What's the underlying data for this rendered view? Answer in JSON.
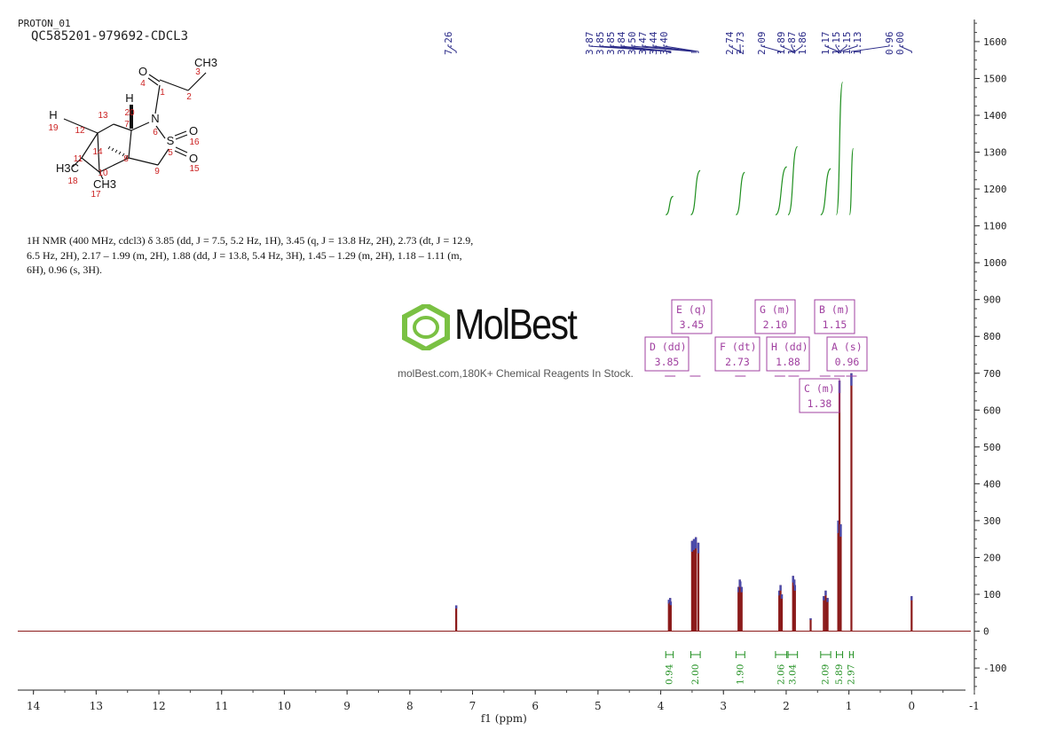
{
  "header": {
    "pulse": "PROTON_01",
    "sample": "QC585201-979692-CDCL3"
  },
  "description_text": {
    "line1": "1H NMR (400 MHz, cdcl3) δ 3.85 (dd, J = 7.5, 5.2 Hz, 1H), 3.45 (q, J = 13.8 Hz, 2H), 2.73 (dt, J = 12.9,",
    "line2": "6.5 Hz, 2H), 2.17 – 1.99 (m, 2H), 1.88 (dd, J = 13.8, 5.4 Hz, 3H), 1.45 – 1.29 (m, 2H), 1.18 – 1.11 (m,",
    "line3": "6H), 0.96 (s, 3H)."
  },
  "watermark": {
    "brand": "MolBest",
    "tagline": "molBest.com,180K+ Chemical Reagents In Stock."
  },
  "structure": {
    "atoms": [
      "O",
      "N",
      "S",
      "O",
      "O",
      "H",
      "H",
      "CH3",
      "H3C",
      "CH3"
    ],
    "numbers": [
      "1",
      "2",
      "3",
      "4",
      "6",
      "7",
      "8",
      "9",
      "10",
      "11",
      "12",
      "13",
      "14",
      "15",
      "16",
      "17",
      "18",
      "19",
      "20",
      "5"
    ]
  },
  "chart_data": {
    "type": "line",
    "title": "",
    "xlabel": "f1 (ppm)",
    "ylabel": "",
    "xlim": [
      14.25,
      -1.0
    ],
    "ylim": [
      -160,
      1660
    ],
    "x_ticks": [
      "14",
      "13",
      "12",
      "11",
      "10",
      "9",
      "8",
      "7",
      "6",
      "5",
      "4",
      "3",
      "2",
      "1",
      "0",
      "-1"
    ],
    "y_ticks": [
      "1600",
      "1500",
      "1400",
      "1300",
      "1200",
      "1100",
      "1000",
      "900",
      "800",
      "700",
      "600",
      "500",
      "400",
      "300",
      "200",
      "100",
      "0",
      "-100"
    ],
    "peak_labels": [
      "7.26",
      "3.87",
      "3.85",
      "3.85",
      "3.84",
      "3.50",
      "3.47",
      "3.44",
      "3.40",
      "2.74",
      "2.73",
      "2.09",
      "1.89",
      "1.87",
      "1.86",
      "1.17",
      "1.15",
      "1.15",
      "1.13",
      "0.96",
      "0.00"
    ],
    "peaks": [
      {
        "ppm": 7.26,
        "height": 70
      },
      {
        "ppm": 3.87,
        "height": 85
      },
      {
        "ppm": 3.85,
        "height": 90
      },
      {
        "ppm": 3.84,
        "height": 80
      },
      {
        "ppm": 3.5,
        "height": 245
      },
      {
        "ppm": 3.47,
        "height": 250
      },
      {
        "ppm": 3.44,
        "height": 255
      },
      {
        "ppm": 3.4,
        "height": 240
      },
      {
        "ppm": 2.76,
        "height": 120
      },
      {
        "ppm": 2.74,
        "height": 140
      },
      {
        "ppm": 2.73,
        "height": 135
      },
      {
        "ppm": 2.71,
        "height": 120
      },
      {
        "ppm": 2.11,
        "height": 110
      },
      {
        "ppm": 2.09,
        "height": 125
      },
      {
        "ppm": 2.07,
        "height": 100
      },
      {
        "ppm": 1.89,
        "height": 150
      },
      {
        "ppm": 1.87,
        "height": 140
      },
      {
        "ppm": 1.86,
        "height": 125
      },
      {
        "ppm": 1.61,
        "height": 35
      },
      {
        "ppm": 1.4,
        "height": 95
      },
      {
        "ppm": 1.37,
        "height": 110
      },
      {
        "ppm": 1.34,
        "height": 90
      },
      {
        "ppm": 1.17,
        "height": 300
      },
      {
        "ppm": 1.15,
        "height": 680
      },
      {
        "ppm": 1.13,
        "height": 290
      },
      {
        "ppm": 0.96,
        "height": 700
      },
      {
        "ppm": 0.0,
        "height": 95
      }
    ],
    "multiplets": [
      {
        "letter": "A",
        "type": "(s)",
        "value": "0.96"
      },
      {
        "letter": "B",
        "type": "(m)",
        "value": "1.15"
      },
      {
        "letter": "C",
        "type": "(m)",
        "value": "1.38"
      },
      {
        "letter": "D",
        "type": "(dd)",
        "value": "3.85"
      },
      {
        "letter": "E",
        "type": "(q)",
        "value": "3.45"
      },
      {
        "letter": "F",
        "type": "(dt)",
        "value": "2.73"
      },
      {
        "letter": "G",
        "type": "(m)",
        "value": "2.10"
      },
      {
        "letter": "H",
        "type": "(dd)",
        "value": "1.88"
      }
    ],
    "integrals": [
      {
        "from": 3.92,
        "to": 3.8,
        "value": "0.94"
      },
      {
        "from": 3.52,
        "to": 3.37,
        "value": "2.00"
      },
      {
        "from": 2.8,
        "to": 2.66,
        "value": "1.90"
      },
      {
        "from": 2.17,
        "to": 1.99,
        "value": "2.06"
      },
      {
        "from": 1.97,
        "to": 1.82,
        "value": "3.04"
      },
      {
        "from": 1.45,
        "to": 1.29,
        "value": "2.09"
      },
      {
        "from": 1.2,
        "to": 1.1,
        "value": "5.89"
      },
      {
        "from": 0.99,
        "to": 0.93,
        "value": "2.97"
      }
    ],
    "colors": {
      "spectrum": "#8b1a1a",
      "peak_tips": "#4a4aaa",
      "integral": "#1f8f1f",
      "multiplet_box": "#a040a0",
      "peak_label": "#2a2a88",
      "logo_green": "#7ac143"
    }
  }
}
